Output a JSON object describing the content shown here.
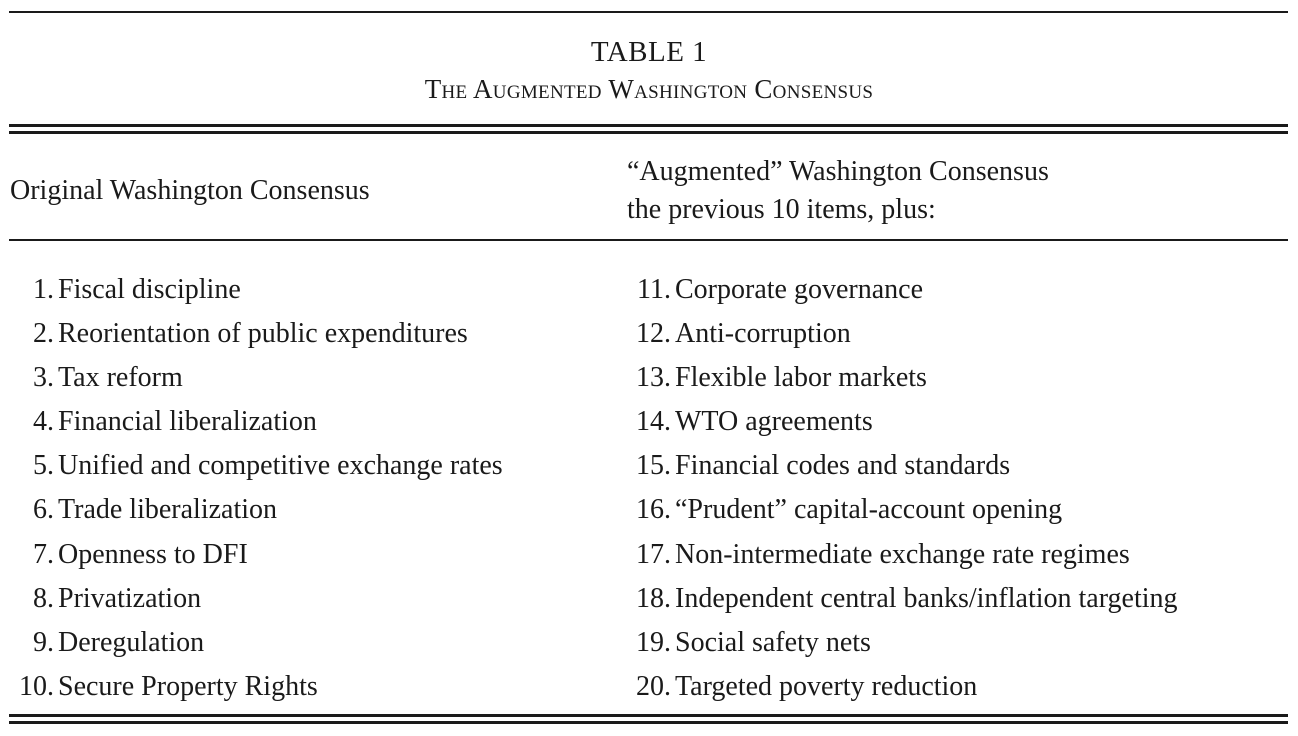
{
  "table": {
    "number": "TABLE 1",
    "caption": "The Augmented Washington Consensus"
  },
  "columns": {
    "left_header": "Original Washington Consensus",
    "right_header_line1": "“Augmented” Washington Consensus",
    "right_header_line2": "the previous 10 items, plus:"
  },
  "original_items": [
    {
      "num": "1.",
      "text": "Fiscal discipline"
    },
    {
      "num": "2.",
      "text": "Reorientation of public expenditures"
    },
    {
      "num": "3.",
      "text": "Tax reform"
    },
    {
      "num": "4.",
      "text": "Financial liberalization"
    },
    {
      "num": "5.",
      "text": "Unified and competitive exchange rates"
    },
    {
      "num": "6.",
      "text": "Trade liberalization"
    },
    {
      "num": "7.",
      "text": "Openness to DFI"
    },
    {
      "num": "8.",
      "text": "Privatization"
    },
    {
      "num": "9.",
      "text": "Deregulation"
    },
    {
      "num": "10.",
      "text": "Secure Property Rights"
    }
  ],
  "augmented_items": [
    {
      "num": "11.",
      "text": "Corporate governance"
    },
    {
      "num": "12.",
      "text": "Anti-corruption"
    },
    {
      "num": "13.",
      "text": "Flexible labor markets"
    },
    {
      "num": "14.",
      "text": "WTO agreements"
    },
    {
      "num": "15.",
      "text": "Financial codes and standards"
    },
    {
      "num": "16.",
      "text": "“Prudent” capital-account opening"
    },
    {
      "num": "17.",
      "text": "Non-intermediate exchange rate regimes"
    },
    {
      "num": "18.",
      "text": "Independent central banks/inflation targeting"
    },
    {
      "num": "19.",
      "text": "Social safety nets"
    },
    {
      "num": "20.",
      "text": "Targeted poverty reduction"
    }
  ]
}
